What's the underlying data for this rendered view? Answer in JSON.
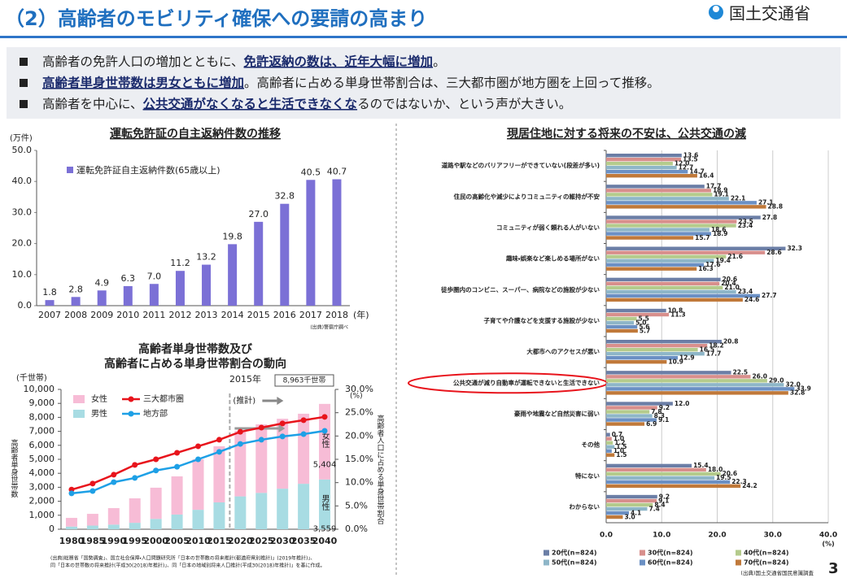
{
  "header": {
    "title": "（2）高齢者のモビリティ確保への要請の高まり",
    "logo": "国土交通省"
  },
  "bullets": [
    [
      {
        "text": "高齢者の免許人口の増加とともに、",
        "emph": false
      },
      {
        "text": "免許返納の数は、近年大幅に増加",
        "emph": true
      },
      {
        "text": "。",
        "emph": false
      }
    ],
    [
      {
        "text": "高齢者単身世帯数は男女ともに増加",
        "emph": true
      },
      {
        "text": "。高齢者に占める単身世帯割合は、三大都市圏が地方圏を上回って推移。",
        "emph": false
      }
    ],
    [
      {
        "text": "高齢者を中心に、",
        "emph": false
      },
      {
        "text": "公共交通がなくなると生活できなくな",
        "emph": true
      },
      {
        "text": "るのではないか、という声が大きい。",
        "emph": false
      }
    ]
  ],
  "chart_data": [
    {
      "type": "bar",
      "title": "運転免許証の自主返納件数の推移",
      "y_unit": "(万件)",
      "x_unit": "(年)",
      "source": "(出典)警察庁調べ",
      "categories": [
        "2007",
        "2008",
        "2009",
        "2010",
        "2011",
        "2012",
        "2013",
        "2014",
        "2015",
        "2016",
        "2017",
        "2018"
      ],
      "series": [
        {
          "name": "運転免許証自主返納件数(65歳以上)",
          "color": "#7b70d6",
          "values": [
            1.8,
            2.8,
            4.9,
            6.3,
            7.0,
            11.2,
            13.2,
            19.8,
            27.0,
            32.8,
            40.5,
            40.7
          ],
          "value_labels": [
            "1.8",
            "2.8",
            "4.9",
            "6.3",
            "7.0",
            "11.2",
            "13.2",
            "19.8",
            "27.0",
            "32.8",
            "40.5",
            "40.7"
          ]
        }
      ],
      "ylim": [
        0,
        50
      ],
      "yticks": [
        {
          "value": 0,
          "label": "0.0"
        },
        {
          "value": 10,
          "label": "10.0"
        },
        {
          "value": 20,
          "label": "20.0"
        },
        {
          "value": 30,
          "label": "30.0"
        },
        {
          "value": 40,
          "label": "40.0"
        },
        {
          "value": 50,
          "label": "50.0"
        }
      ],
      "grid": false
    },
    {
      "type": "combo",
      "title": [
        "高齢者単身世帯数及び",
        "高齢者に占める単身世帯割合の動向"
      ],
      "y_unit": "(千世帯)",
      "y2_unit": "(%)",
      "y_label": "高齢者単身世帯数",
      "y2_label": "高齢者人口に占める単身世帯割合",
      "annotations": [
        "2015年",
        "(推計)",
        "8,963千世帯"
      ],
      "source": [
        "(出典)総務省「国勢調査」、国立社会保障・人口問題研究所「日本の世帯数の将来推計(都道府県別推計)」(2019年推計)」、",
        "同「日本の世帯数の将来推計(平成30(2018)年推計)」、同「日本の地域別将来人口推計(平成30(2018)年推計)」を基に作成。"
      ],
      "categories": [
        "1980",
        "1985",
        "1990",
        "1995",
        "2000",
        "2005",
        "2010",
        "2015",
        "2020",
        "2025",
        "2030",
        "2035",
        "2040"
      ],
      "series": [
        {
          "name": "女性",
          "type": "bar",
          "color": "#f7bcd6",
          "values": [
            620,
            840,
            1180,
            1750,
            2230,
            2730,
            3610,
            4010,
            4680,
            4900,
            5000,
            5010,
            5404
          ],
          "value_labels": [
            null,
            null,
            null,
            null,
            null,
            null,
            null,
            null,
            null,
            null,
            null,
            null,
            "5,404"
          ]
        },
        {
          "name": "男性",
          "type": "bar",
          "color": "#a8dce3",
          "values": [
            190,
            260,
            330,
            460,
            740,
            1050,
            1390,
            1920,
            2350,
            2600,
            2900,
            3250,
            3559
          ],
          "value_labels": [
            null,
            null,
            null,
            null,
            null,
            null,
            null,
            null,
            null,
            null,
            null,
            null,
            "3,559"
          ]
        },
        {
          "name": "三大都市圏",
          "type": "line",
          "axis": "y2",
          "color": "#e8141c",
          "values": [
            8.5,
            9.8,
            11.7,
            13.8,
            15.0,
            16.4,
            17.8,
            19.2,
            20.9,
            21.8,
            22.7,
            23.4,
            24.1
          ]
        },
        {
          "name": "地方部",
          "type": "line",
          "axis": "y2",
          "color": "#1ea0e6",
          "values": [
            7.7,
            8.2,
            10.1,
            11.0,
            12.6,
            13.4,
            15.0,
            16.6,
            18.3,
            19.2,
            19.9,
            20.4,
            21.1
          ]
        }
      ],
      "ylim": [
        0,
        10000
      ],
      "yticks": [
        0,
        {
          "value": 1000,
          "label": "1,000"
        },
        {
          "value": 2000,
          "label": "2,000"
        },
        {
          "value": 3000,
          "label": "3,000"
        },
        {
          "value": 4000,
          "label": "4,000"
        },
        {
          "value": 5000,
          "label": "5,000"
        },
        {
          "value": 6000,
          "label": "6,000"
        },
        {
          "value": 7000,
          "label": "7,000"
        },
        {
          "value": 8000,
          "label": "8,000"
        },
        {
          "value": 9000,
          "label": "9,000"
        },
        {
          "value": 10000,
          "label": "10,000"
        }
      ],
      "y2lim": [
        0,
        30
      ],
      "y2ticks": [
        {
          "value": 0,
          "label": "0.0%"
        },
        {
          "value": 5,
          "label": "5.0%"
        },
        {
          "value": 10,
          "label": "10.0%"
        },
        {
          "value": 15,
          "label": "15.0%"
        },
        {
          "value": 20,
          "label": "20.0%"
        },
        {
          "value": 25,
          "label": "25.0%"
        },
        {
          "value": 30,
          "label": "30.0%"
        }
      ]
    },
    {
      "type": "hbar",
      "title": "現居住地に対する将来の不安は、公共交通の減",
      "x_unit": "(%)",
      "source": "(出典)国土交通省国民意識調査",
      "categories": [
        "道路や駅などのバリアフリーができていない(段差が多い)",
        "住民の高齢化や減少によりコミュニティの維持が不安",
        "コミュニティが弱く頼れる人がいない",
        "趣味・娯楽など楽しめる場所がない",
        "徒歩圏内のコンビニ、スーパー、病院などの施設が少ない",
        "子育てや介護などを支援する施設が少ない",
        "大都市へのアクセスが悪い",
        "公共交通が減り自動車が運転できないと生活できない",
        "豪雨や地震など自然災害に弱い",
        "その他",
        "特にない",
        "わからない"
      ],
      "highlight": 7,
      "highlight_color": "#e8141c",
      "series": [
        {
          "name": "20代(n=824)",
          "color": "#6b7ea6",
          "values": [
            13.6,
            17.7,
            27.8,
            32.3,
            20.6,
            10.8,
            20.8,
            22.5,
            12.0,
            0.7,
            15.4,
            9.2
          ],
          "value_labels": [
            "13.6",
            "17.7",
            "27.8",
            "32.3",
            "20.6",
            "10.8",
            "20.8",
            "22.5",
            "12.0",
            "0.7",
            "15.4",
            "9.2"
          ]
        },
        {
          "name": "30代(n=824)",
          "color": "#d88f8c",
          "values": [
            13.5,
            18.9,
            23.5,
            28.6,
            20.4,
            11.3,
            18.2,
            26.0,
            9.2,
            1.0,
            18.0,
            9.1
          ],
          "value_labels": [
            "13.5",
            "18.9",
            "23.5",
            "28.6",
            "20.4",
            "11.3",
            "18.2",
            "26.0",
            "9.2",
            "1.0",
            "18.0",
            "9.1"
          ]
        },
        {
          "name": "40代(n=824)",
          "color": "#b4cb8c",
          "values": [
            12.0,
            19.1,
            23.4,
            21.6,
            21.0,
            5.5,
            16.5,
            29.0,
            7.8,
            1.2,
            20.6,
            8.4
          ],
          "value_labels": [
            "12.0",
            "19.1",
            "23.4",
            "21.6",
            "21.0",
            "5.5",
            "16.5",
            "29.0",
            "7.8",
            "1.2",
            "20.6",
            "8.4"
          ]
        },
        {
          "name": "50代(n=824)",
          "color": "#8eb6c8",
          "values": [
            12.7,
            22.1,
            18.6,
            19.4,
            23.4,
            5.0,
            17.7,
            32.0,
            8.3,
            1.5,
            19.5,
            7.4
          ],
          "value_labels": [
            "12.7",
            "22.1",
            "18.6",
            "19.4",
            "23.4",
            "5.0",
            "17.7",
            "32.0",
            "8.3",
            "1.5",
            "19.5",
            "7.4"
          ]
        },
        {
          "name": "60代(n=824)",
          "color": "#6b90c4",
          "values": [
            14.7,
            27.1,
            18.9,
            17.6,
            27.7,
            5.6,
            12.9,
            33.9,
            9.1,
            1.0,
            22.3,
            4.1
          ],
          "value_labels": [
            "14.7",
            "27.1",
            "18.9",
            "17.6",
            "27.7",
            "5.6",
            "12.9",
            "33.9",
            "9.1",
            "1.0",
            "22.3",
            "4.1"
          ]
        },
        {
          "name": "70代(n=824)",
          "color": "#c0793a",
          "values": [
            16.4,
            28.8,
            15.7,
            16.3,
            24.6,
            5.7,
            10.9,
            32.8,
            6.9,
            1.5,
            24.2,
            3.0
          ],
          "value_labels": [
            "16.4",
            "28.8",
            "15.7",
            "16.3",
            "24.6",
            "5.7",
            "10.9",
            "32.8",
            "6.9",
            "1.5",
            "24.2",
            "3.0"
          ]
        }
      ],
      "xlim": [
        0,
        40
      ],
      "xticks": [
        {
          "value": 0,
          "label": "0.0"
        },
        {
          "value": 10,
          "label": "10.0"
        },
        {
          "value": 20,
          "label": "20.0"
        },
        {
          "value": 30,
          "label": "30.0"
        },
        {
          "value": 40,
          "label": "40.0"
        }
      ],
      "grid": true
    }
  ],
  "page_number": "3"
}
